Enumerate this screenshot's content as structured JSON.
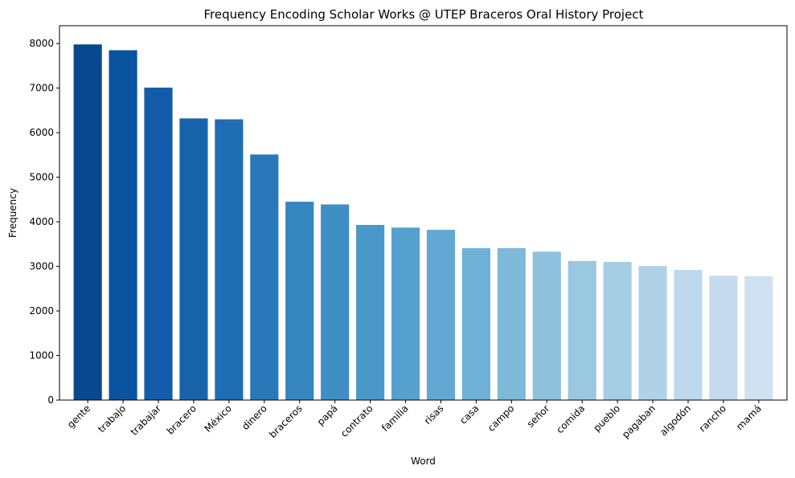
{
  "chart_data": {
    "type": "bar",
    "title": "Frequency Encoding Scholar Works @ UTEP Braceros Oral History Project",
    "xlabel": "Word",
    "ylabel": "Frequency",
    "categories": [
      "gente",
      "trabajo",
      "trabajar",
      "bracero",
      "México",
      "dinero",
      "braceros",
      "papá",
      "contrato",
      "familia",
      "risas",
      "casa",
      "campo",
      "señor",
      "comida",
      "pueblo",
      "pagaban",
      "algodón",
      "rancho",
      "mamá"
    ],
    "values": [
      7980,
      7850,
      7010,
      6320,
      6300,
      5510,
      4450,
      4390,
      3930,
      3870,
      3820,
      3410,
      3410,
      3330,
      3120,
      3100,
      3010,
      2920,
      2790,
      2780
    ],
    "ylim": [
      0,
      8400
    ],
    "yticks": [
      0,
      1000,
      2000,
      3000,
      4000,
      5000,
      6000,
      7000,
      8000
    ],
    "grid": false,
    "colormap": "Blues (dark to light)",
    "colors": [
      "#08488e",
      "#0a539e",
      "#125ca9",
      "#1864aa",
      "#1f6eb3",
      "#2979b9",
      "#3585bf",
      "#3f8fc5",
      "#4a98c9",
      "#56a0ce",
      "#63a8d3",
      "#6fb0d7",
      "#7fb9da",
      "#8dc1dd",
      "#9ac8e0",
      "#a5cde3",
      "#b0d2e7",
      "#bdd8ec",
      "#c6dbef",
      "#d0e1f2"
    ]
  }
}
